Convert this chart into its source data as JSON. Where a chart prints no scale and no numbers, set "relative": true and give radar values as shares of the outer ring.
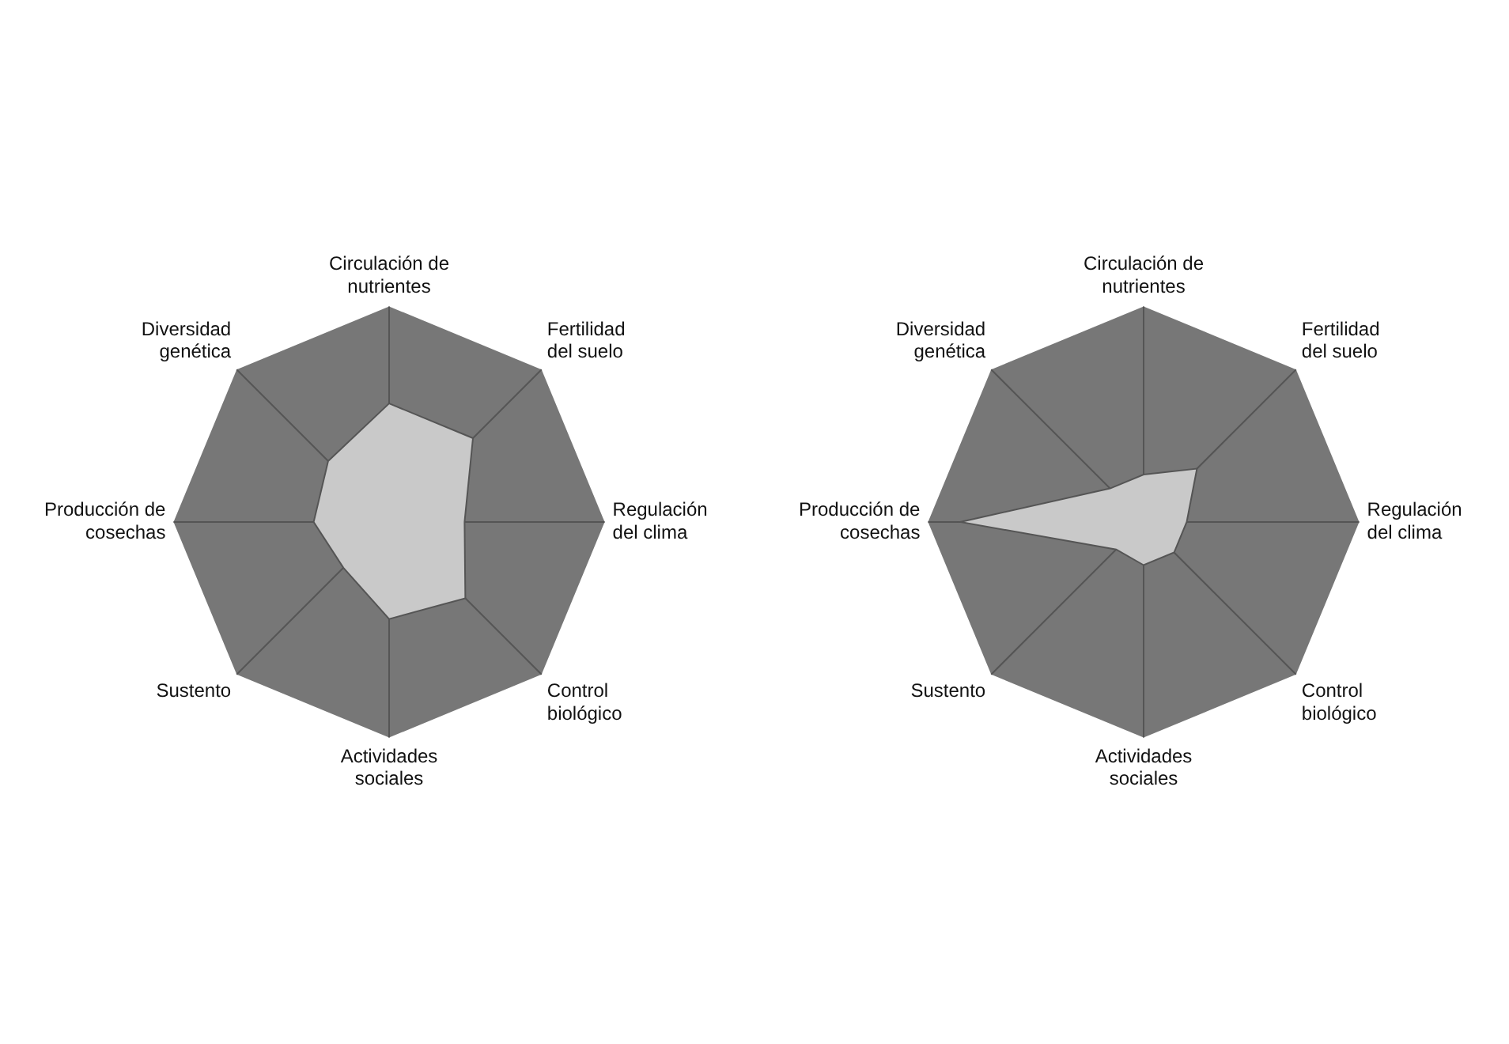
{
  "chart_data": [
    {
      "type": "radar",
      "relative": true,
      "categories": [
        "Circulación de nutrientes",
        "Fertilidad del suelo",
        "Regulación del clima",
        "Control biológico",
        "Actividades sociales",
        "Sustento",
        "Producción de cosechas",
        "Diversidad genética"
      ],
      "series": [
        {
          "color": "#c9c9c9",
          "values": [
            0.55,
            0.55,
            0.35,
            0.5,
            0.45,
            0.3,
            0.35,
            0.4
          ]
        }
      ]
    },
    {
      "type": "radar",
      "relative": true,
      "categories": [
        "Circulación de nutrientes",
        "Fertilidad del suelo",
        "Regulación del clima",
        "Control biológico",
        "Actividades sociales",
        "Sustento",
        "Producción de cosechas",
        "Diversidad genética"
      ],
      "series": [
        {
          "color": "#c9c9c9",
          "values": [
            0.22,
            0.35,
            0.2,
            0.2,
            0.2,
            0.18,
            0.85,
            0.22
          ]
        }
      ]
    }
  ]
}
